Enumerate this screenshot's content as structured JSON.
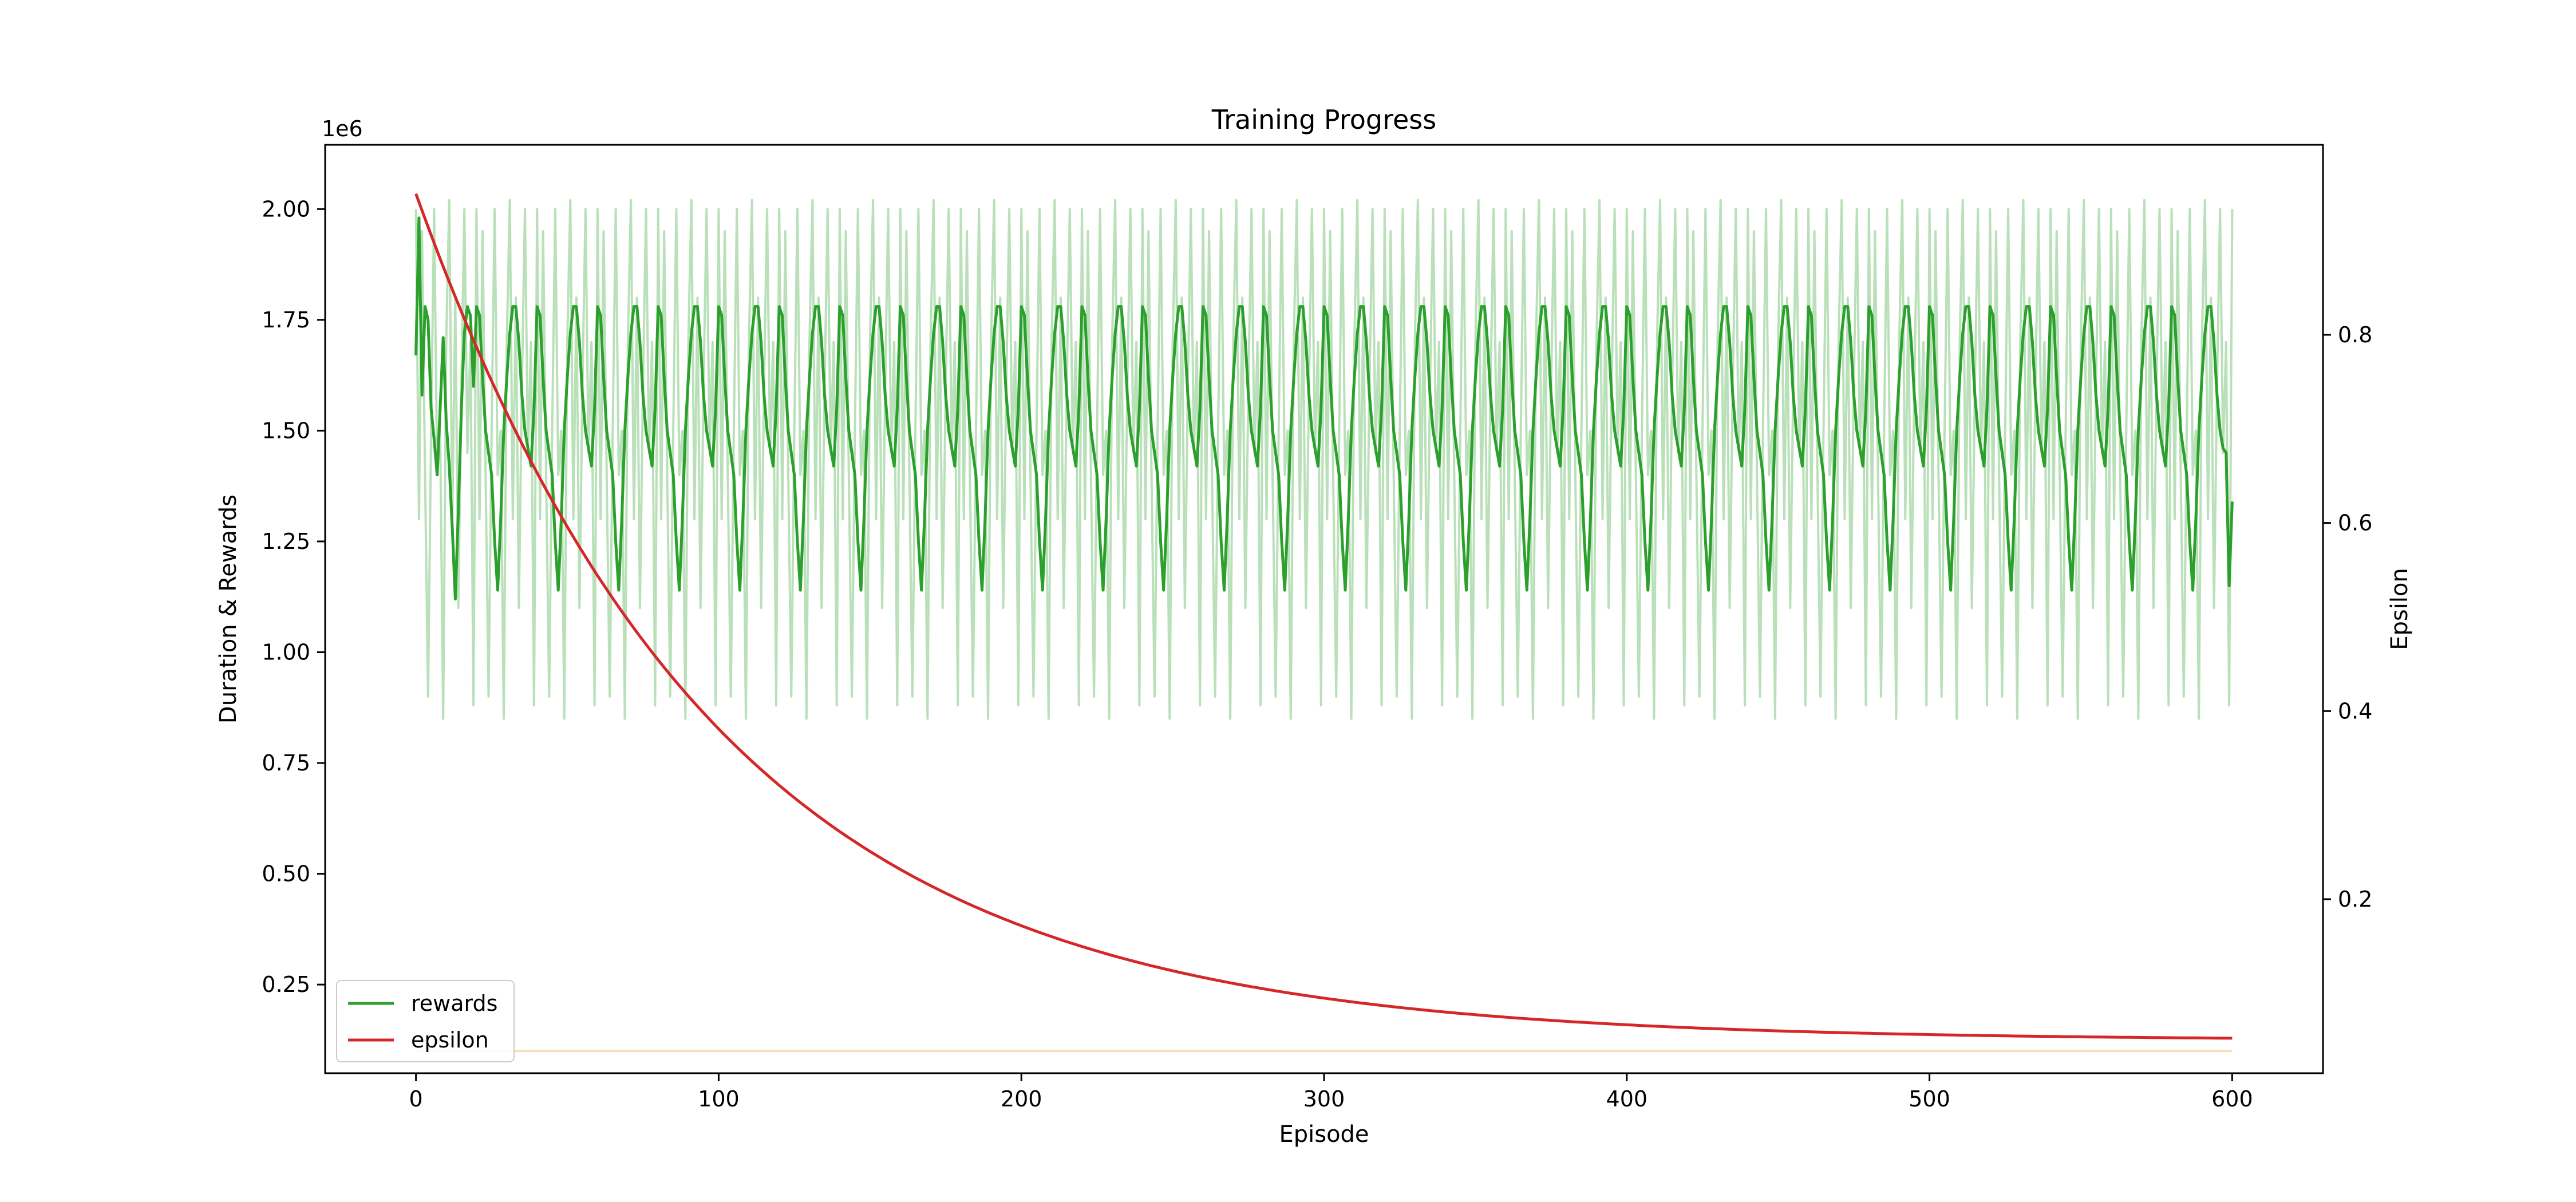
{
  "chart_data": {
    "type": "line",
    "title": "Training Progress",
    "xlabel": "Episode",
    "ylabel_left": "Duration & Rewards",
    "ylabel_right": "Epsilon",
    "left_axis_offset_label": "1e6",
    "xlim": [
      -30,
      630
    ],
    "ylim_left": [
      0.05,
      2.145
    ],
    "ylim_right": [
      0.015,
      1.002
    ],
    "x_ticks": [
      0,
      100,
      200,
      300,
      400,
      500,
      600
    ],
    "y_left_ticks": [
      0.25,
      0.5,
      0.75,
      1.0,
      1.25,
      1.5,
      1.75,
      2.0
    ],
    "y_left_tick_labels": [
      "0.25",
      "0.50",
      "0.75",
      "1.00",
      "1.25",
      "1.50",
      "1.75",
      "2.00"
    ],
    "y_right_ticks": [
      0.2,
      0.4,
      0.6,
      0.8
    ],
    "y_right_tick_labels": [
      "0.2",
      "0.4",
      "0.6",
      "0.8"
    ],
    "grid": false,
    "legend_position": "lower-left",
    "colors": {
      "rewards": "#2ca02c",
      "rewards_raw": "#b9e0b9",
      "epsilon": "#d62728",
      "duration": "#f5dfb8"
    },
    "series": [
      {
        "name": "rewards",
        "axis": "left",
        "note_values": "smoothed rewards, in units of 1e6; oscillates with period ~20 episodes",
        "x_start": 0,
        "x_end": 600,
        "cycle_period": 20,
        "cycle_values": [
          1.78,
          1.76,
          1.62,
          1.5,
          1.45,
          1.4,
          1.25,
          1.14,
          1.3,
          1.5,
          1.62,
          1.72,
          1.78,
          1.78,
          1.7,
          1.58,
          1.5,
          1.46,
          1.42,
          1.55
        ],
        "start_values": [
          1.67,
          1.98,
          1.58,
          1.78,
          1.75,
          1.55,
          1.48,
          1.4,
          1.55,
          1.71,
          1.52,
          1.42,
          1.28,
          1.12,
          1.32,
          1.55,
          1.72,
          1.78,
          1.76,
          1.6
        ],
        "end_values": [
          1.45,
          1.15,
          1.34
        ]
      },
      {
        "name": "",
        "role": "raw rewards (faint)",
        "axis": "left",
        "x_start": 0,
        "x_end": 600,
        "cycle_period": 20,
        "cycle_values": [
          2.0,
          1.3,
          1.95,
          1.4,
          0.9,
          1.5,
          2.0,
          1.4,
          1.5,
          0.85,
          1.7,
          2.02,
          1.3,
          1.8,
          1.1,
          1.6,
          2.0,
          1.45,
          1.7,
          0.88
        ]
      },
      {
        "name": "",
        "role": "duration (faint, flat)",
        "axis": "left",
        "x": [
          0,
          600
        ],
        "values": [
          0.1,
          0.1
        ]
      },
      {
        "name": "epsilon",
        "axis": "right",
        "note_values": "exponential decay",
        "start": 0.95,
        "floor": 0.05,
        "decay_rate": 0.01,
        "x_start": 0,
        "x_end": 600,
        "points": [
          [
            0,
            0.95
          ],
          [
            100,
            0.381
          ],
          [
            200,
            0.172
          ],
          [
            300,
            0.095
          ],
          [
            400,
            0.066
          ],
          [
            500,
            0.056
          ],
          [
            600,
            0.052
          ]
        ]
      }
    ]
  }
}
